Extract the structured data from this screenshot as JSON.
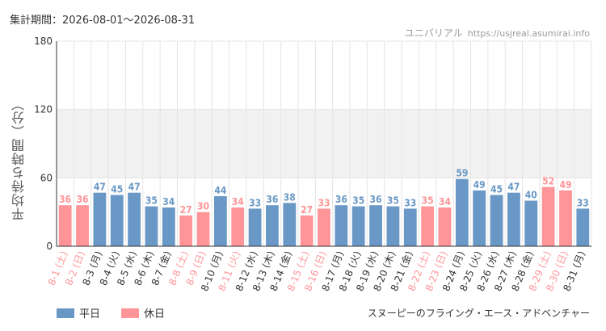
{
  "header": {
    "period": "集計期間：2026-08-01～2026-08-31",
    "brand": "ユニバリアル",
    "url": "https://usjreal.asumirai.info"
  },
  "footer": {
    "attraction": "スヌーピーのフライング・エース・アドベンチャー"
  },
  "colors": {
    "weekday": "#6a98c6",
    "holiday": "#ff9598",
    "band": "#f1f1f1",
    "grid": "#e4e4e4"
  },
  "chart_data": {
    "type": "bar",
    "ylabel": "平均待ち時間（分）",
    "ylim": [
      0,
      180
    ],
    "yticks": [
      0,
      60,
      120,
      180
    ],
    "shaded_band": [
      60,
      120
    ],
    "legend": [
      "平日",
      "休日"
    ],
    "legend_position": "bottom-left",
    "categories": [
      "8-1 (土)",
      "8-2 (日)",
      "8-3 (月)",
      "8-4 (火)",
      "8-5 (水)",
      "8-6 (木)",
      "8-7 (金)",
      "8-8 (土)",
      "8-9 (日)",
      "8-10 (月)",
      "8-11 (火)",
      "8-12 (水)",
      "8-13 (木)",
      "8-14 (金)",
      "8-15 (土)",
      "8-16 (日)",
      "8-17 (月)",
      "8-18 (火)",
      "8-19 (水)",
      "8-20 (木)",
      "8-21 (金)",
      "8-22 (土)",
      "8-23 (日)",
      "8-24 (月)",
      "8-25 (火)",
      "8-26 (水)",
      "8-27 (木)",
      "8-28 (金)",
      "8-29 (土)",
      "8-30 (日)",
      "8-31 (月)"
    ],
    "values": [
      36,
      36,
      47,
      45,
      47,
      35,
      34,
      27,
      30,
      44,
      34,
      33,
      36,
      38,
      27,
      33,
      36,
      35,
      36,
      35,
      33,
      35,
      34,
      59,
      49,
      45,
      47,
      40,
      52,
      49,
      33
    ],
    "holiday": [
      true,
      true,
      false,
      false,
      false,
      false,
      false,
      true,
      true,
      false,
      true,
      false,
      false,
      false,
      true,
      true,
      false,
      false,
      false,
      false,
      false,
      true,
      true,
      false,
      false,
      false,
      false,
      false,
      true,
      true,
      false
    ]
  }
}
